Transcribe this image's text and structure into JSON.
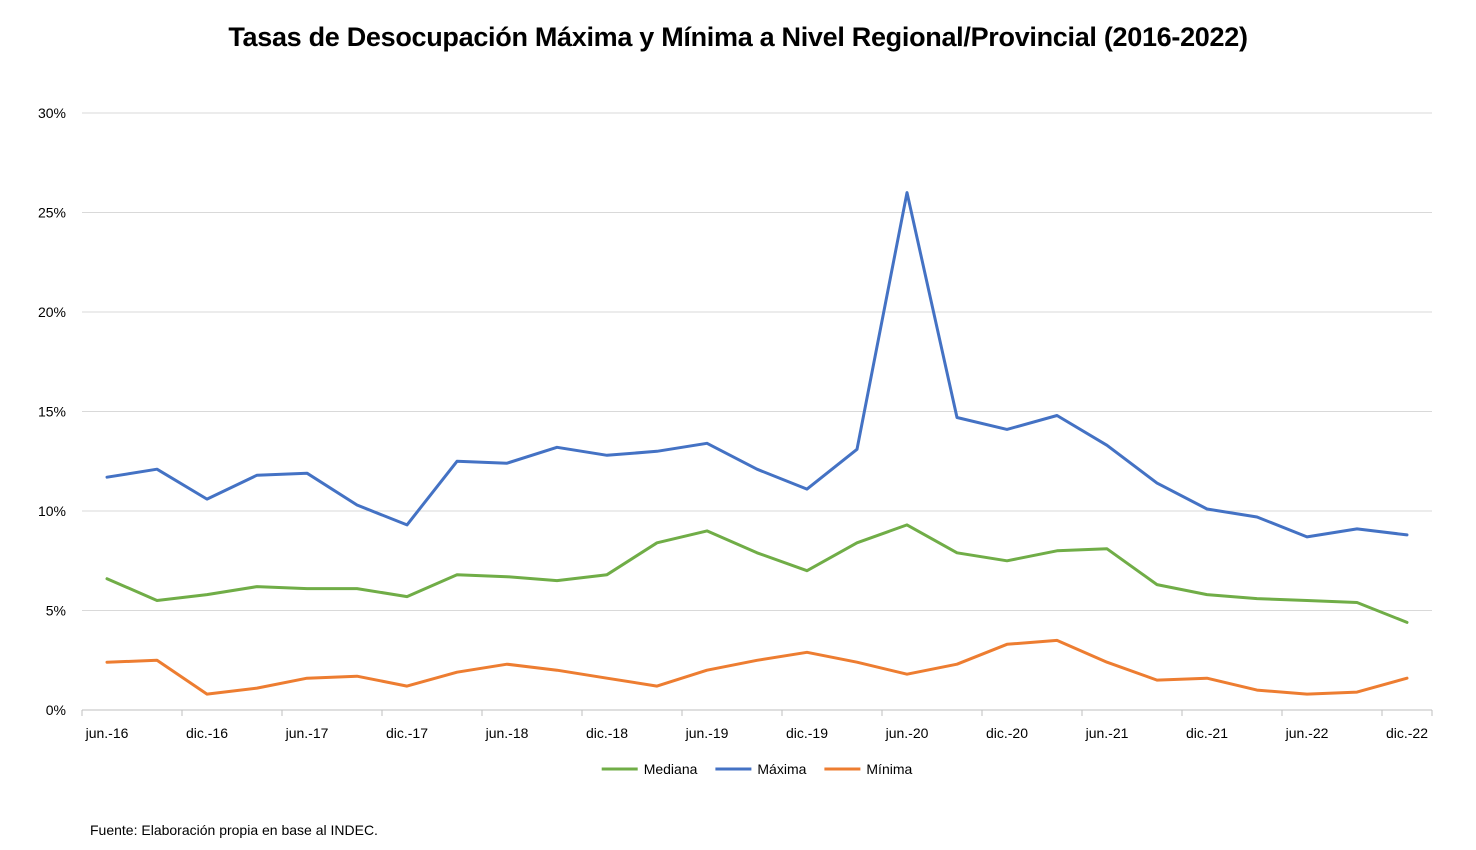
{
  "chart_data": {
    "type": "line",
    "title": "Tasas de Desocupación Máxima y Mínima a Nivel Regional/Provincial (2016-2022)",
    "xlabel": "",
    "ylabel": "",
    "ylim": [
      0,
      30
    ],
    "y_ticks": [
      "0%",
      "5%",
      "10%",
      "15%",
      "20%",
      "25%",
      "30%"
    ],
    "x_tick_labels": [
      "jun.-16",
      "dic.-16",
      "jun.-17",
      "dic.-17",
      "jun.-18",
      "dic.-18",
      "jun.-19",
      "dic.-19",
      "jun.-20",
      "dic.-20",
      "jun.-21",
      "dic.-21",
      "jun.-22",
      "dic.-22"
    ],
    "categories": [
      "jun.-16",
      "sep.-16",
      "dic.-16",
      "mar.-17",
      "jun.-17",
      "sep.-17",
      "dic.-17",
      "mar.-18",
      "jun.-18",
      "sep.-18",
      "dic.-18",
      "mar.-19",
      "jun.-19",
      "sep.-19",
      "dic.-19",
      "mar.-20",
      "jun.-20",
      "sep.-20",
      "dic.-20",
      "mar.-21",
      "jun.-21",
      "sep.-21",
      "dic.-21",
      "mar.-22",
      "jun.-22",
      "sep.-22",
      "dic.-22"
    ],
    "grid": true,
    "legend_position": "bottom",
    "series": [
      {
        "name": "Mediana",
        "color": "#70AD47",
        "values": [
          6.6,
          5.5,
          5.8,
          6.2,
          6.1,
          6.1,
          5.7,
          6.8,
          6.7,
          6.5,
          6.8,
          8.4,
          9.0,
          7.9,
          7.0,
          8.4,
          9.3,
          7.9,
          7.5,
          8.0,
          8.1,
          6.3,
          5.8,
          5.6,
          5.5,
          5.4,
          4.4
        ]
      },
      {
        "name": "Máxima",
        "color": "#4472C4",
        "values": [
          11.7,
          12.1,
          10.6,
          11.8,
          11.9,
          10.3,
          9.3,
          12.5,
          12.4,
          13.2,
          12.8,
          13.0,
          13.4,
          12.1,
          11.1,
          13.1,
          26.0,
          14.7,
          14.1,
          14.8,
          13.3,
          11.4,
          10.1,
          9.7,
          8.7,
          9.1,
          8.8
        ]
      },
      {
        "name": "Mínima",
        "color": "#ED7D31",
        "values": [
          2.4,
          2.5,
          0.8,
          1.1,
          1.6,
          1.7,
          1.2,
          1.9,
          2.3,
          2.0,
          1.6,
          1.2,
          2.0,
          2.5,
          2.9,
          2.4,
          1.8,
          2.3,
          3.3,
          3.5,
          2.4,
          1.5,
          1.6,
          1.0,
          0.8,
          0.9,
          1.6
        ]
      }
    ]
  },
  "footer": {
    "source": "Fuente: Elaboración propia en base al INDEC."
  }
}
